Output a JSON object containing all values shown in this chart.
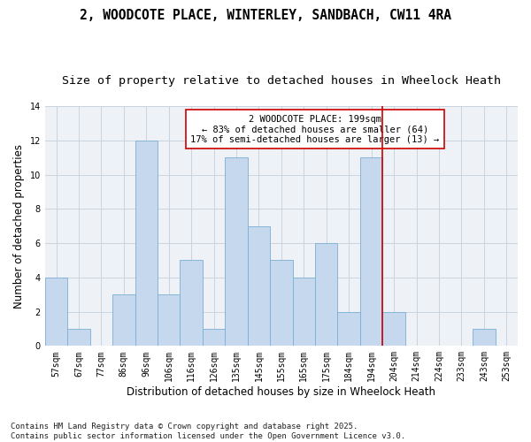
{
  "title": "2, WOODCOTE PLACE, WINTERLEY, SANDBACH, CW11 4RA",
  "subtitle": "Size of property relative to detached houses in Wheelock Heath",
  "xlabel": "Distribution of detached houses by size in Wheelock Heath",
  "ylabel": "Number of detached properties",
  "categories": [
    "57sqm",
    "67sqm",
    "77sqm",
    "86sqm",
    "96sqm",
    "106sqm",
    "116sqm",
    "126sqm",
    "135sqm",
    "145sqm",
    "155sqm",
    "165sqm",
    "175sqm",
    "184sqm",
    "194sqm",
    "204sqm",
    "214sqm",
    "224sqm",
    "233sqm",
    "243sqm",
    "253sqm"
  ],
  "values": [
    4,
    1,
    0,
    3,
    12,
    3,
    5,
    1,
    11,
    7,
    5,
    4,
    6,
    2,
    11,
    2,
    0,
    0,
    0,
    1,
    0
  ],
  "bar_color": "#c5d8ed",
  "bar_edge_color": "#7bafd4",
  "grid_color": "#c8d4de",
  "background_color": "#eef2f6",
  "vline_x_index": 14,
  "vline_color": "#cc0000",
  "annotation_text": "2 WOODCOTE PLACE: 199sqm\n← 83% of detached houses are smaller (64)\n17% of semi-detached houses are larger (13) →",
  "annotation_box_color": "#ffffff",
  "annotation_box_edge_color": "#cc0000",
  "ylim": [
    0,
    14
  ],
  "yticks": [
    0,
    2,
    4,
    6,
    8,
    10,
    12,
    14
  ],
  "footer": "Contains HM Land Registry data © Crown copyright and database right 2025.\nContains public sector information licensed under the Open Government Licence v3.0.",
  "title_fontsize": 10.5,
  "subtitle_fontsize": 9.5,
  "axis_label_fontsize": 8.5,
  "tick_fontsize": 7,
  "annotation_fontsize": 7.5,
  "footer_fontsize": 6.5
}
